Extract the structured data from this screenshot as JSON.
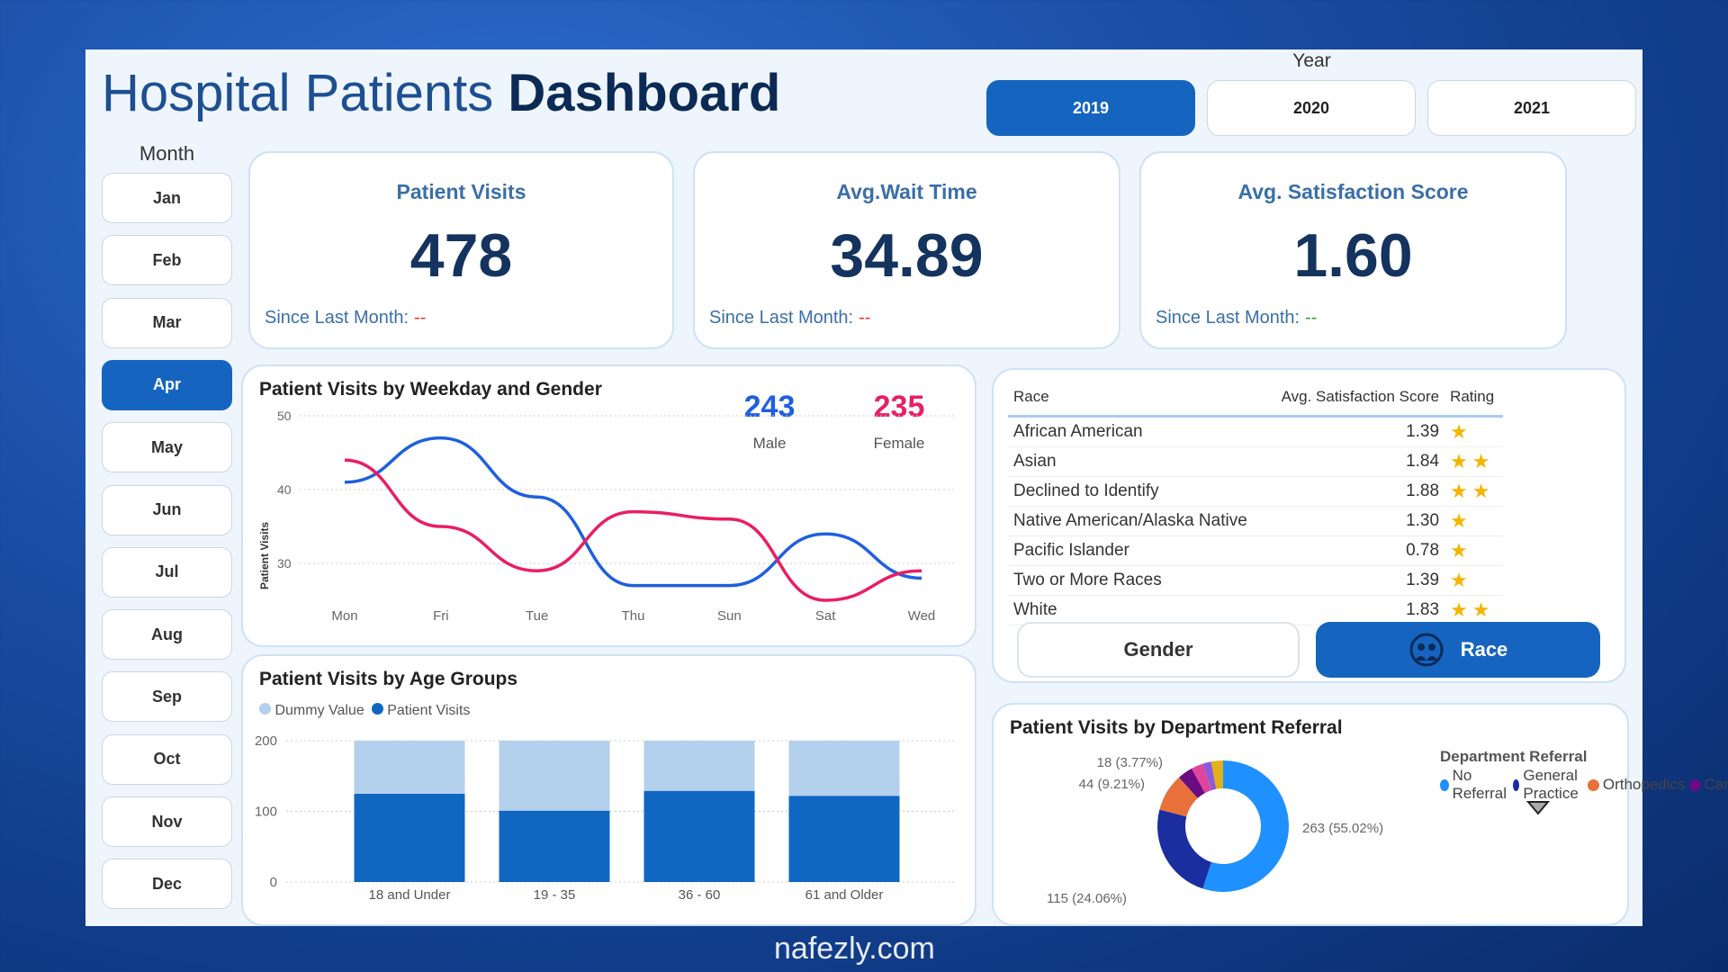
{
  "header": {
    "title_light": "Hospital Patients",
    "title_bold": "Dashboard"
  },
  "year": {
    "label": "Year",
    "options": [
      "2019",
      "2020",
      "2021"
    ],
    "selected": "2019"
  },
  "month": {
    "label": "Month",
    "options": [
      "Jan",
      "Feb",
      "Mar",
      "Apr",
      "May",
      "Jun",
      "Jul",
      "Aug",
      "Sep",
      "Oct",
      "Nov",
      "Dec"
    ],
    "selected": "Apr"
  },
  "kpis": [
    {
      "title": "Patient Visits",
      "value": "478",
      "since_label": "Since Last Month:",
      "since_value": "--",
      "since_color": "#e53935"
    },
    {
      "title": "Avg.Wait Time",
      "value": "34.89",
      "since_label": "Since Last Month:",
      "since_value": "--",
      "since_color": "#e53935"
    },
    {
      "title": "Avg. Satisfaction Score",
      "value": "1.60",
      "since_label": "Since Last Month:",
      "since_value": "--",
      "since_color": "#2e9e3e"
    }
  ],
  "gender_totals": {
    "male_value": "243",
    "male_label": "Male",
    "female_value": "235",
    "female_label": "Female"
  },
  "race_table": {
    "headers": [
      "Race",
      "Avg. Satisfaction Score",
      "Rating"
    ],
    "rows": [
      {
        "race": "African American",
        "score": "1.39",
        "stars": 1
      },
      {
        "race": "Asian",
        "score": "1.84",
        "stars": 2
      },
      {
        "race": "Declined to Identify",
        "score": "1.88",
        "stars": 2
      },
      {
        "race": "Native American/Alaska Native",
        "score": "1.30",
        "stars": 1
      },
      {
        "race": "Pacific Islander",
        "score": "0.78",
        "stars": 1
      },
      {
        "race": "Two or More Races",
        "score": "1.39",
        "stars": 1
      },
      {
        "race": "White",
        "score": "1.83",
        "stars": 2
      }
    ],
    "toggle": {
      "gender": "Gender",
      "race": "Race",
      "selected": "Race"
    }
  },
  "chart_data": [
    {
      "type": "line",
      "title": "Patient Visits by Weekday and Gender",
      "ylabel": "Patient Visits",
      "categories": [
        "Mon",
        "Fri",
        "Tue",
        "Thu",
        "Sun",
        "Sat",
        "Wed"
      ],
      "yticks": [
        30,
        40,
        50
      ],
      "ylim": [
        24,
        50
      ],
      "grid": true,
      "series": [
        {
          "key": "male",
          "color": "#1f5fe0",
          "values": [
            41,
            47,
            39,
            27,
            27,
            34,
            28
          ]
        },
        {
          "key": "female",
          "color": "#e91e63",
          "values": [
            44,
            35,
            29,
            37,
            36,
            25,
            29
          ]
        }
      ]
    },
    {
      "type": "bar",
      "title": "Patient Visits by Age Groups",
      "stacked": true,
      "categories": [
        "18 and Under",
        "19 - 35",
        "36 - 60",
        "61 and Older"
      ],
      "yticks": [
        0,
        100,
        200
      ],
      "ylim": [
        0,
        200
      ],
      "legend": "top-left",
      "series": [
        {
          "name": "Dummy Value",
          "color": "#b3d0ec",
          "values": [
            75,
            99,
            71,
            78
          ]
        },
        {
          "name": "Patient Visits",
          "color": "#0f67c2",
          "values": [
            125,
            101,
            129,
            122
          ]
        }
      ]
    },
    {
      "type": "pie",
      "donut": true,
      "title": "Patient Visits by Department Referral",
      "legend_title": "Department Referral",
      "legend": "right",
      "slices": [
        {
          "name": "No Referral",
          "value": 263,
          "label": "263 (55.02%)",
          "color": "#1e90ff"
        },
        {
          "name": "General Practice",
          "value": 115,
          "label": "115 (24.06%)",
          "color": "#1a2ea0"
        },
        {
          "name": "Orthopedics",
          "value": 44,
          "label": "44 (9.21%)",
          "color": "#e8703a"
        },
        {
          "name": "Cardiology",
          "value": 18,
          "label": "18 (3.77%)",
          "color": "#6a0d83"
        },
        {
          "value": 14,
          "color": "#e0459b"
        },
        {
          "value": 10,
          "color": "#8a5bd6"
        },
        {
          "value": 14,
          "color": "#e2b017"
        }
      ]
    }
  ]
}
